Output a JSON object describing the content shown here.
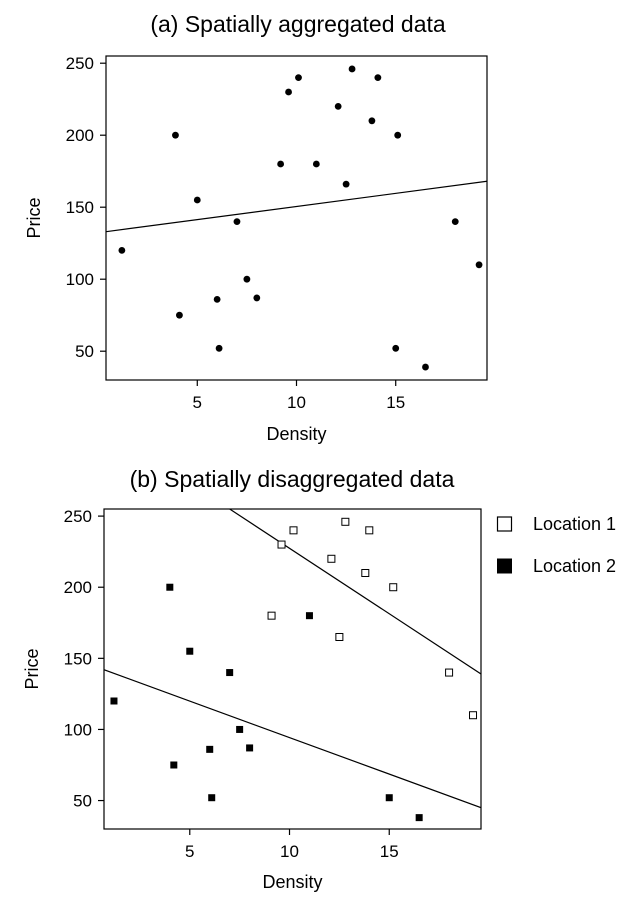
{
  "chart_data": [
    {
      "type": "scatter",
      "title": "(a) Spatially aggregated data",
      "xlabel": "Density",
      "ylabel": "Price",
      "xlim": [
        0.4,
        19.6
      ],
      "ylim": [
        30,
        255
      ],
      "xticks": [
        5,
        10,
        15
      ],
      "yticks": [
        50,
        100,
        150,
        200,
        250
      ],
      "grid": false,
      "series": [
        {
          "marker": "circle",
          "points": [
            [
              1.2,
              120
            ],
            [
              3.9,
              200
            ],
            [
              4.1,
              75
            ],
            [
              5,
              155
            ],
            [
              6,
              86
            ],
            [
              6.1,
              52
            ],
            [
              7,
              140
            ],
            [
              7.5,
              100
            ],
            [
              8,
              87
            ],
            [
              9.2,
              180
            ],
            [
              9.6,
              230
            ],
            [
              10.1,
              240
            ],
            [
              11,
              180
            ],
            [
              12.1,
              220
            ],
            [
              12.5,
              166
            ],
            [
              12.8,
              246
            ],
            [
              13.8,
              210
            ],
            [
              14.1,
              240
            ],
            [
              15,
              52
            ],
            [
              15.1,
              200
            ],
            [
              16.5,
              39
            ],
            [
              18,
              140
            ],
            [
              19.2,
              110
            ]
          ]
        }
      ],
      "lines": [
        {
          "from": [
            0.4,
            133
          ],
          "to": [
            19.6,
            168
          ]
        }
      ]
    },
    {
      "type": "scatter",
      "title": "(b) Spatially disaggregated data",
      "xlabel": "Density",
      "ylabel": "Price",
      "xlim": [
        0.7,
        19.6
      ],
      "ylim": [
        30,
        255
      ],
      "xticks": [
        5,
        10,
        15
      ],
      "yticks": [
        50,
        100,
        150,
        200,
        250
      ],
      "grid": false,
      "legend_position": "right",
      "series": [
        {
          "name": "Location 1",
          "marker": "open-square",
          "points": [
            [
              9.1,
              180
            ],
            [
              9.6,
              230
            ],
            [
              10.2,
              240
            ],
            [
              12.1,
              220
            ],
            [
              12.5,
              165
            ],
            [
              12.8,
              246
            ],
            [
              13.8,
              210
            ],
            [
              14,
              240
            ],
            [
              15.2,
              200
            ],
            [
              18,
              140
            ],
            [
              19.2,
              110
            ]
          ]
        },
        {
          "name": "Location 2",
          "marker": "filled-square",
          "points": [
            [
              1.2,
              120
            ],
            [
              4,
              200
            ],
            [
              4.2,
              75
            ],
            [
              5,
              155
            ],
            [
              6,
              86
            ],
            [
              6.1,
              52
            ],
            [
              7,
              140
            ],
            [
              7.5,
              100
            ],
            [
              8,
              87
            ],
            [
              11,
              180
            ],
            [
              15,
              52
            ],
            [
              16.5,
              38
            ]
          ]
        }
      ],
      "lines": [
        {
          "from": [
            7.0,
            255
          ],
          "to": [
            19.6,
            139
          ]
        },
        {
          "from": [
            0.7,
            142
          ],
          "to": [
            19.6,
            45
          ]
        }
      ]
    }
  ]
}
